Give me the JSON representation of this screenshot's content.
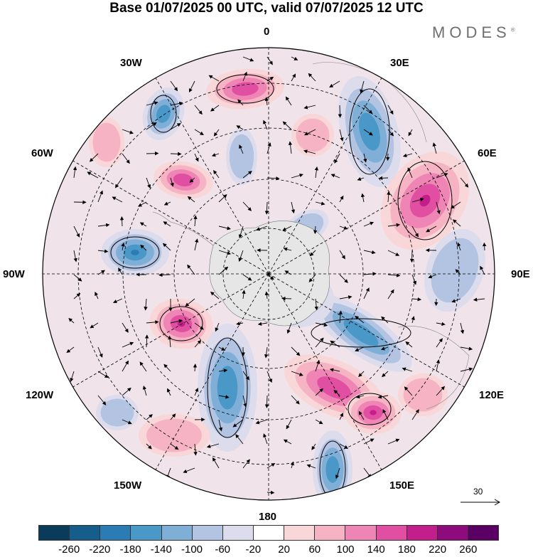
{
  "header": {
    "title": "Base 01/07/2025 00 UTC, valid 07/07/2025 12 UTC",
    "brand": "MODES",
    "brand_mark": "®"
  },
  "map": {
    "projection": "south-polar-stereographic",
    "longitude_labels": {
      "lon0": "0",
      "lon30e": "30E",
      "lon60e": "60E",
      "lon90e": "90E",
      "lon120e": "120E",
      "lon150e": "150E",
      "lon180": "180",
      "lon150w": "150W",
      "lon120w": "120W",
      "lon90w": "90W",
      "lon60w": "60W",
      "lon30w": "30W"
    },
    "vector_reference": "30",
    "colors": {
      "land": "#9a9a9a",
      "grid": "#000000"
    }
  },
  "colorbar": {
    "tick_labels": [
      "-260",
      "-220",
      "-180",
      "-140",
      "-100",
      "-60",
      "-20",
      "20",
      "60",
      "100",
      "140",
      "180",
      "220",
      "260"
    ],
    "colors": [
      "#0b3b5a",
      "#155e8c",
      "#2b7bb5",
      "#4a98c8",
      "#7faed6",
      "#b2c4e2",
      "#dcdced",
      "#ffffff",
      "#f9d6d8",
      "#f5b3c3",
      "#ef85b4",
      "#e14fa2",
      "#c41e8c",
      "#8d0b7d",
      "#5a0064"
    ]
  }
}
